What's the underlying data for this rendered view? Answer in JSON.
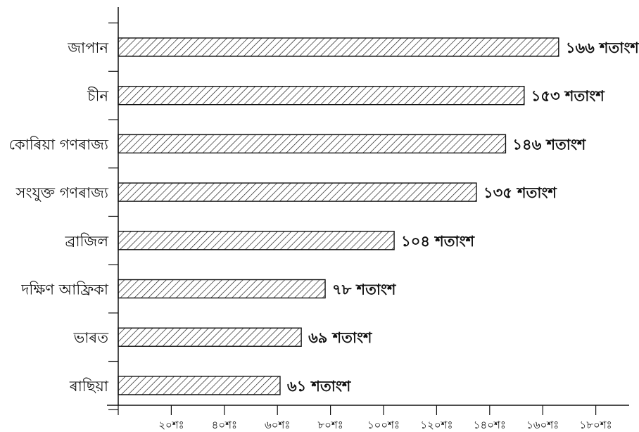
{
  "chart_data": {
    "type": "bar",
    "orientation": "horizontal",
    "categories": [
      "জাপান",
      "চীন",
      "কোৰিয়া গণৰাজ্য",
      "সংযুক্ত গণৰাজ্য",
      "ব্ৰাজিল",
      "দক্ষিণ আফ্ৰিকা",
      "ভাৰত",
      "ৰাছিয়া"
    ],
    "values": [
      166,
      153,
      146,
      135,
      104,
      78,
      69,
      61
    ],
    "value_labels": [
      "১৬৬ শতাংশ",
      "১৫৩ শতাংশ",
      "১৪৬ শতাংশ",
      "১৩৫ শতাংশ",
      "১০৪ শতাংশ",
      "৭৮ শতাংশ",
      "৬৯ শতাংশ",
      "৬১ শতাংশ"
    ],
    "x_ticks": [
      20,
      40,
      60,
      80,
      100,
      120,
      140,
      160,
      180
    ],
    "x_tick_labels": [
      "২০শঃ",
      "৪০শঃ",
      "৬০শঃ",
      "৮০শঃ",
      "১০০শঃ",
      "১২০শঃ",
      "১৪০শঃ",
      "১৬০শঃ",
      "১৮০শঃ"
    ],
    "xlim": [
      0,
      190
    ],
    "title": "",
    "xlabel": "",
    "ylabel": "",
    "bar_fill": "hatched",
    "bar_color": "#111111",
    "grid": false
  }
}
